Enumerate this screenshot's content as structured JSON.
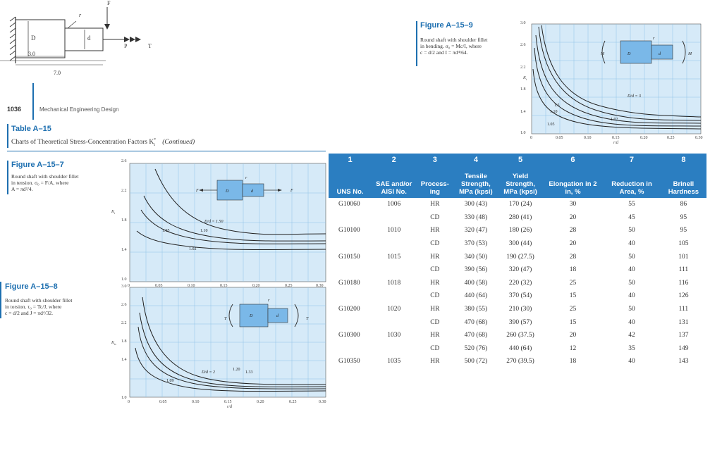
{
  "header": {
    "page_number": "1036",
    "running_title": "Mechanical Engineering Design"
  },
  "top_diagram": {
    "labels": [
      "F",
      "r",
      "D",
      "d",
      "P",
      "T",
      "3.0",
      "7.0"
    ]
  },
  "table_caption": {
    "title": "Table A–15",
    "subtitle": "Charts of Theoretical Stress-Concentration Factors K",
    "subtitle_sup": "*",
    "subtitle_sub": "t",
    "continued": "(Continued)"
  },
  "fig_a15_9": {
    "title": "Figure A–15–9",
    "caption": [
      "Round shaft with shoulder fillet",
      "in bending. σ₀ = Mc/I, where",
      "c = d/2 and I = πd⁴/64."
    ],
    "ylabel": "K",
    "ylabel_sub": "t",
    "xlabel": "r/d",
    "yticks": [
      "3.0",
      "2.6",
      "2.2",
      "1.8",
      "1.4",
      "1.0"
    ],
    "xticks": [
      "0",
      "0.05",
      "0.10",
      "0.15",
      "0.20",
      "0.25",
      "0.30"
    ],
    "curve_labels": [
      "D/d = 3",
      "1.5",
      "1.10",
      "1.05",
      "1.02"
    ],
    "inset_labels": [
      "M",
      "D",
      "d",
      "M",
      "r"
    ]
  },
  "fig_a15_7": {
    "title": "Figure A–15–7",
    "caption": [
      "Round shaft with shoulder fillet",
      "in tension. σ₀ = F/A, where",
      "A = πd²/4."
    ],
    "ylabel": "K",
    "ylabel_sub": "t",
    "yticks": [
      "2.6",
      "2.2",
      "1.8",
      "1.4",
      "1.0"
    ],
    "xticks": [
      "0",
      "0.05",
      "0.10",
      "0.15",
      "0.20",
      "0.25",
      "0.30"
    ],
    "curve_labels": [
      "D/d = 1.50",
      "1.05",
      "1.10",
      "1.02"
    ],
    "inset_labels": [
      "F",
      "D",
      "d",
      "F",
      "r"
    ]
  },
  "fig_a15_8": {
    "title": "Figure A–15–8",
    "caption": [
      "Round shaft with shoulder fillet",
      "in torsion. τ₀ = Tc/J, where",
      "c = d/2 and J = πd⁴/32."
    ],
    "ylabel": "K",
    "ylabel_sub": "ts",
    "xlabel": "r/d",
    "yticks": [
      "3.0",
      "2.6",
      "2.2",
      "1.8",
      "1.4",
      "1.0"
    ],
    "xticks": [
      "0",
      "0.05",
      "0.10",
      "0.15",
      "0.20",
      "0.25",
      "0.30"
    ],
    "curve_labels": [
      "D/d = 2",
      "1.20",
      "1.33",
      "1.09"
    ],
    "inset_labels": [
      "T",
      "D",
      "d",
      "T",
      "r"
    ]
  },
  "steel_table": {
    "column_numbers": [
      "1",
      "2",
      "3",
      "4",
      "5",
      "6",
      "7",
      "8"
    ],
    "headers": [
      "UNS No.",
      "SAE and/or AISI No.",
      "Process-ing",
      "Tensile Strength, MPa (kpsi)",
      "Yield Strength, MPa (kpsi)",
      "Elongation in 2 in, %",
      "Reduction in Area, %",
      "Brinell Hardness"
    ],
    "rows": [
      [
        "G10060",
        "1006",
        "HR",
        "300 (43)",
        "170 (24)",
        "30",
        "55",
        "86"
      ],
      [
        "",
        "",
        "CD",
        "330 (48)",
        "280 (41)",
        "20",
        "45",
        "95"
      ],
      [
        "G10100",
        "1010",
        "HR",
        "320 (47)",
        "180 (26)",
        "28",
        "50",
        "95"
      ],
      [
        "",
        "",
        "CD",
        "370 (53)",
        "300 (44)",
        "20",
        "40",
        "105"
      ],
      [
        "G10150",
        "1015",
        "HR",
        "340 (50)",
        "190 (27.5)",
        "28",
        "50",
        "101"
      ],
      [
        "",
        "",
        "CD",
        "390 (56)",
        "320 (47)",
        "18",
        "40",
        "111"
      ],
      [
        "G10180",
        "1018",
        "HR",
        "400 (58)",
        "220 (32)",
        "25",
        "50",
        "116"
      ],
      [
        "",
        "",
        "CD",
        "440 (64)",
        "370 (54)",
        "15",
        "40",
        "126"
      ],
      [
        "G10200",
        "1020",
        "HR",
        "380 (55)",
        "210 (30)",
        "25",
        "50",
        "111"
      ],
      [
        "",
        "",
        "CD",
        "470 (68)",
        "390 (57)",
        "15",
        "40",
        "131"
      ],
      [
        "G10300",
        "1030",
        "HR",
        "470 (68)",
        "260 (37.5)",
        "20",
        "42",
        "137"
      ],
      [
        "",
        "",
        "CD",
        "520 (76)",
        "440 (64)",
        "12",
        "35",
        "149"
      ],
      [
        "G10350",
        "1035",
        "HR",
        "500 (72)",
        "270 (39.5)",
        "18",
        "40",
        "143"
      ]
    ]
  }
}
